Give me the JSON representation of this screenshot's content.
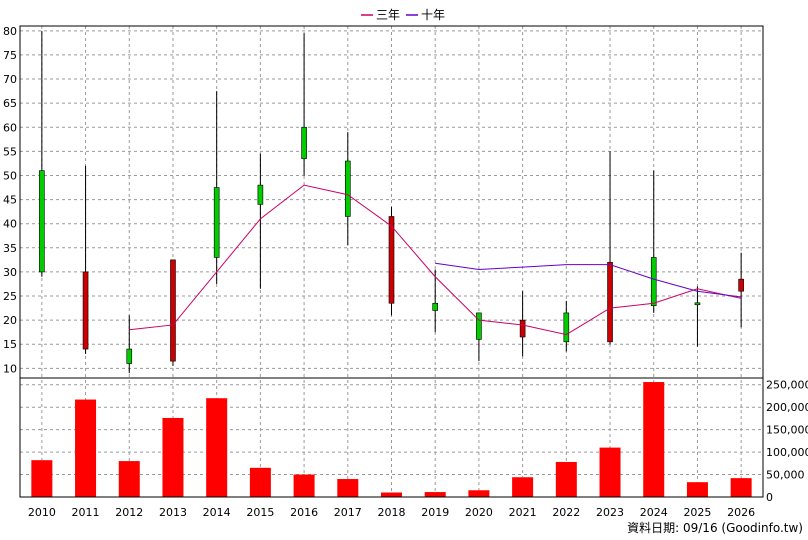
{
  "chart_data": {
    "type": "candlestick+line+bar",
    "legend": [
      {
        "name": "三年",
        "color": "#cc0066"
      },
      {
        "name": "十年",
        "color": "#6600cc"
      }
    ],
    "categories": [
      "2010",
      "2011",
      "2012",
      "2013",
      "2014",
      "2015",
      "2016",
      "2017",
      "2018",
      "2019",
      "2020",
      "2021",
      "2022",
      "2023",
      "2024",
      "2025",
      "2026"
    ],
    "price_axis": {
      "ylim": [
        8,
        81
      ],
      "ticks": [
        10,
        15,
        20,
        25,
        30,
        35,
        40,
        45,
        50,
        55,
        60,
        65,
        70,
        75,
        80
      ],
      "position": "left"
    },
    "volume_axis": {
      "ylim": [
        0,
        265000
      ],
      "ticks": [
        0,
        50000,
        100000,
        150000,
        200000,
        250000
      ],
      "tick_labels": [
        "0",
        "50,000",
        "100,000",
        "150,000",
        "200,000",
        "250,000"
      ],
      "position": "right"
    },
    "candles": [
      {
        "year": "2010",
        "open": 30,
        "high": 80,
        "low": 29,
        "close": 51
      },
      {
        "year": "2011",
        "open": 30,
        "high": 52,
        "low": 13,
        "close": 14
      },
      {
        "year": "2012",
        "open": 11,
        "high": 21,
        "low": 9,
        "close": 14
      },
      {
        "year": "2013",
        "open": 32.5,
        "high": 32.5,
        "low": 10.5,
        "close": 11.5
      },
      {
        "year": "2014",
        "open": 33,
        "high": 67.5,
        "low": 27.5,
        "close": 47.5
      },
      {
        "year": "2015",
        "open": 44,
        "high": 54.5,
        "low": 26.5,
        "close": 48
      },
      {
        "year": "2016",
        "open": 53.5,
        "high": 79.5,
        "low": 50,
        "close": 60
      },
      {
        "year": "2017",
        "open": 41.5,
        "high": 59,
        "low": 35.5,
        "close": 53
      },
      {
        "year": "2018",
        "open": 41.5,
        "high": 43.5,
        "low": 21,
        "close": 23.5
      },
      {
        "year": "2019",
        "open": 22,
        "high": 30.5,
        "low": 17.5,
        "close": 23.5
      },
      {
        "year": "2020",
        "open": 16,
        "high": 21.5,
        "low": 11.5,
        "close": 21.5
      },
      {
        "year": "2021",
        "open": 20,
        "high": 26,
        "low": 12.5,
        "close": 16.5
      },
      {
        "year": "2022",
        "open": 15.5,
        "high": 24,
        "low": 13.5,
        "close": 21.5
      },
      {
        "year": "2023",
        "open": 32,
        "high": 55,
        "low": 15,
        "close": 15.5
      },
      {
        "year": "2024",
        "open": 23,
        "high": 51,
        "low": 21.5,
        "close": 33
      },
      {
        "year": "2025",
        "open": 23.2,
        "high": 27,
        "low": 14.5,
        "close": 23.6
      },
      {
        "year": "2026",
        "open": 28.5,
        "high": 34,
        "low": 18.5,
        "close": 26
      }
    ],
    "lines": [
      {
        "name": "三年",
        "color": "#cc0066",
        "points": [
          [
            "2012",
            18
          ],
          [
            "2013",
            19
          ],
          [
            "2014",
            30
          ],
          [
            "2015",
            41
          ],
          [
            "2016",
            48
          ],
          [
            "2017",
            46
          ],
          [
            "2018",
            39.5
          ],
          [
            "2019",
            29
          ],
          [
            "2020",
            20
          ],
          [
            "2021",
            19
          ],
          [
            "2022",
            17
          ],
          [
            "2023",
            22.5
          ],
          [
            "2024",
            23.5
          ],
          [
            "2025",
            26.5
          ],
          [
            "2026",
            24.5
          ]
        ]
      },
      {
        "name": "十年",
        "color": "#6600cc",
        "points": [
          [
            "2019",
            31.8
          ],
          [
            "2020",
            30.5
          ],
          [
            "2021",
            31
          ],
          [
            "2022",
            31.5
          ],
          [
            "2023",
            31.5
          ],
          [
            "2024",
            28.5
          ],
          [
            "2025",
            26
          ],
          [
            "2026",
            24.8
          ]
        ]
      }
    ],
    "volumes": [
      {
        "year": "2010",
        "value": 82000
      },
      {
        "year": "2011",
        "value": 217000
      },
      {
        "year": "2012",
        "value": 80000
      },
      {
        "year": "2013",
        "value": 176000
      },
      {
        "year": "2014",
        "value": 220000
      },
      {
        "year": "2015",
        "value": 65000
      },
      {
        "year": "2016",
        "value": 50000
      },
      {
        "year": "2017",
        "value": 40000
      },
      {
        "year": "2018",
        "value": 10000
      },
      {
        "year": "2019",
        "value": 11000
      },
      {
        "year": "2020",
        "value": 15000
      },
      {
        "year": "2021",
        "value": 44000
      },
      {
        "year": "2022",
        "value": 78000
      },
      {
        "year": "2023",
        "value": 110000
      },
      {
        "year": "2024",
        "value": 256000
      },
      {
        "year": "2025",
        "value": 33000
      },
      {
        "year": "2026",
        "value": 42000
      }
    ],
    "colors": {
      "up": "#00cc00",
      "down": "#cc0000",
      "volume": "#ff0000",
      "grid": "#9a9a9a"
    },
    "grid": true,
    "legend_position": "top-center",
    "credit": "資料日期: 09/16  (Goodinfo.tw)"
  }
}
